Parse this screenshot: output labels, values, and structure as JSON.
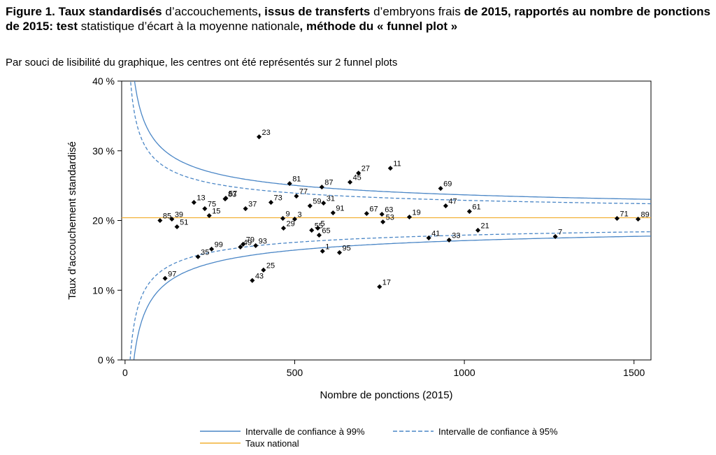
{
  "figure": {
    "title_parts": [
      {
        "text": "Figure 1. Taux standardisés",
        "bold": true
      },
      {
        "text": " d’accouchements",
        "bold": false
      },
      {
        "text": ", issus de transferts",
        "bold": true
      },
      {
        "text": " d’embryons frais ",
        "bold": false
      },
      {
        "text": "de 2015, rapportés au nombre de ponctions de 2015: test",
        "bold": true
      },
      {
        "text": " statistique d’écart à la moyenne nationale",
        "bold": false
      },
      {
        "text": ", méthode du « funnel plot »",
        "bold": true
      }
    ],
    "subtitle": "Par souci de lisibilité du graphique, les centres ont été représentés sur 2 funnel plots"
  },
  "chart_data": {
    "type": "scatter",
    "xlabel": "Nombre de ponctions (2015)",
    "ylabel": "Taux d’accouchement standardisé",
    "xlim": [
      -10,
      1550
    ],
    "ylim": [
      0,
      40
    ],
    "xticks": [
      0,
      500,
      1000,
      1500
    ],
    "xtick_labels": [
      "0",
      "500",
      "1000",
      "1500"
    ],
    "yticks": [
      0,
      10,
      20,
      30,
      40
    ],
    "ytick_labels": [
      "0 %",
      "10 %",
      "20 %",
      "30 %",
      "40 %"
    ],
    "grid": false,
    "national_rate": 20.4,
    "points": [
      {
        "label": "23",
        "x": 395,
        "y": 32.0
      },
      {
        "label": "81",
        "x": 485,
        "y": 25.3
      },
      {
        "label": "87",
        "x": 580,
        "y": 24.8
      },
      {
        "label": "27",
        "x": 688,
        "y": 26.8
      },
      {
        "label": "45",
        "x": 663,
        "y": 25.5
      },
      {
        "label": "11",
        "x": 782,
        "y": 27.5
      },
      {
        "label": "69",
        "x": 930,
        "y": 24.6
      },
      {
        "label": "47",
        "x": 945,
        "y": 22.1
      },
      {
        "label": "61",
        "x": 1015,
        "y": 21.3
      },
      {
        "label": "13",
        "x": 203,
        "y": 22.6
      },
      {
        "label": "83",
        "x": 295,
        "y": 23.1
      },
      {
        "label": "57",
        "x": 297,
        "y": 23.2
      },
      {
        "label": "73",
        "x": 430,
        "y": 22.6
      },
      {
        "label": "37",
        "x": 355,
        "y": 21.7
      },
      {
        "label": "77",
        "x": 505,
        "y": 23.5
      },
      {
        "label": "59",
        "x": 545,
        "y": 22.1
      },
      {
        "label": "31",
        "x": 585,
        "y": 22.5
      },
      {
        "label": "91",
        "x": 613,
        "y": 21.1
      },
      {
        "label": "67",
        "x": 712,
        "y": 21.0
      },
      {
        "label": "63",
        "x": 757,
        "y": 20.9
      },
      {
        "label": "19",
        "x": 838,
        "y": 20.5
      },
      {
        "label": "53",
        "x": 760,
        "y": 19.8
      },
      {
        "label": "75",
        "x": 235,
        "y": 21.7
      },
      {
        "label": "15",
        "x": 248,
        "y": 20.7
      },
      {
        "label": "85",
        "x": 103,
        "y": 20.0
      },
      {
        "label": "39",
        "x": 138,
        "y": 20.2
      },
      {
        "label": "51",
        "x": 153,
        "y": 19.1
      },
      {
        "label": "9",
        "x": 465,
        "y": 20.3
      },
      {
        "label": "3",
        "x": 500,
        "y": 20.2
      },
      {
        "label": "29",
        "x": 467,
        "y": 18.9
      },
      {
        "label": "55",
        "x": 550,
        "y": 18.6
      },
      {
        "label": "5",
        "x": 568,
        "y": 18.9
      },
      {
        "label": "65",
        "x": 572,
        "y": 17.9
      },
      {
        "label": "71",
        "x": 1450,
        "y": 20.3
      },
      {
        "label": "89",
        "x": 1512,
        "y": 20.2
      },
      {
        "label": "41",
        "x": 895,
        "y": 17.5
      },
      {
        "label": "33",
        "x": 955,
        "y": 17.2
      },
      {
        "label": "21",
        "x": 1040,
        "y": 18.6
      },
      {
        "label": "7",
        "x": 1268,
        "y": 17.7
      },
      {
        "label": "49",
        "x": 340,
        "y": 16.2
      },
      {
        "label": "79",
        "x": 348,
        "y": 16.6
      },
      {
        "label": "93",
        "x": 385,
        "y": 16.4
      },
      {
        "label": "99",
        "x": 255,
        "y": 15.9
      },
      {
        "label": "35",
        "x": 215,
        "y": 14.8
      },
      {
        "label": "1",
        "x": 582,
        "y": 15.6
      },
      {
        "label": "95",
        "x": 632,
        "y": 15.4
      },
      {
        "label": "25",
        "x": 408,
        "y": 12.9
      },
      {
        "label": "43",
        "x": 375,
        "y": 11.4
      },
      {
        "label": "97",
        "x": 118,
        "y": 11.7
      },
      {
        "label": "17",
        "x": 750,
        "y": 10.5
      }
    ],
    "series": [
      {
        "name": "Intervalle de confiance à 99%",
        "style": "solid",
        "color": "#4a86c6",
        "z": 2.576
      },
      {
        "name": "Intervalle de confiance à 95%",
        "style": "dashed",
        "color": "#4a86c6",
        "z": 1.96
      },
      {
        "name": "Taux national",
        "style": "solid",
        "color": "#f2b134"
      }
    ]
  }
}
